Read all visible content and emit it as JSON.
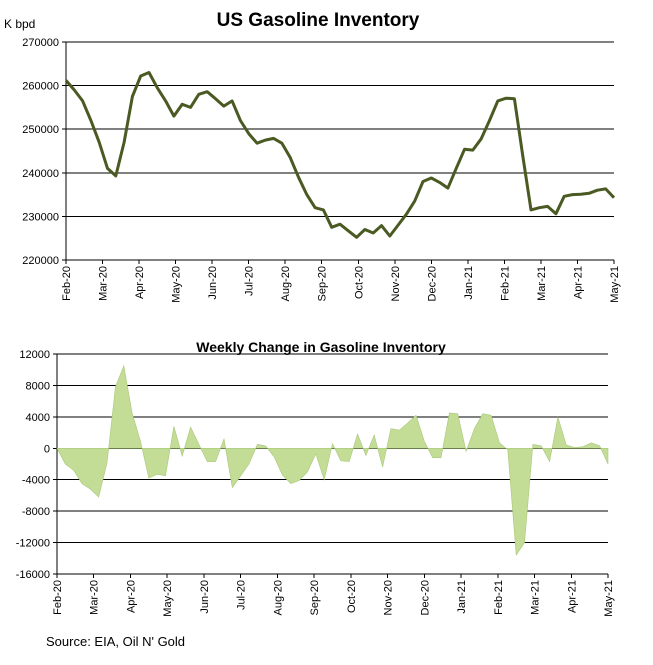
{
  "source_note": "Source: EIA, Oil N' Gold",
  "colors": {
    "line": "#4a5a22",
    "area": "#c3dc96",
    "area_edge": "#a9c97a",
    "grid": "#000000"
  },
  "chart_data": [
    {
      "type": "line",
      "title": "US Gasoline Inventory",
      "ylabel": "K bpd",
      "ylim": [
        220000,
        270000
      ],
      "yticks": [
        220000,
        230000,
        240000,
        250000,
        260000,
        270000
      ],
      "ytick_labels": [
        "220000",
        "230000",
        "240000",
        "250000",
        "260000",
        "270000"
      ],
      "xlabels": [
        "Feb-20",
        "Mar-20",
        "Apr-20",
        "May-20",
        "Jun-20",
        "Jul-20",
        "Aug-20",
        "Sep-20",
        "Oct-20",
        "Nov-20",
        "Dec-20",
        "Jan-21",
        "Feb-21",
        "Mar-21",
        "Apr-21",
        "May-21"
      ],
      "grid": true,
      "series": [
        {
          "values": [
            261200,
            259000,
            256500,
            252000,
            247000,
            241000,
            239300,
            247000,
            257500,
            262200,
            263000,
            259500,
            256500,
            253000,
            255700,
            255000,
            258000,
            258600,
            257000,
            255300,
            256500,
            252000,
            249000,
            246800,
            247500,
            247900,
            246800,
            243500,
            239000,
            235000,
            232000,
            231500,
            227500,
            228200,
            226700,
            225200,
            227000,
            226200,
            227900,
            225500,
            228000,
            230500,
            233500,
            238000,
            238800,
            237800,
            236500,
            241000,
            245400,
            245200,
            247800,
            252000,
            256500,
            257100,
            257000,
            244000,
            231500,
            232000,
            232300,
            230600,
            234600,
            235000,
            235100,
            235300,
            236000,
            236300,
            234300
          ]
        }
      ]
    },
    {
      "type": "area",
      "title": "Weekly Change in Gasoline Inventory",
      "ylim": [
        -16000,
        12000
      ],
      "yticks": [
        -16000,
        -12000,
        -8000,
        -4000,
        0,
        4000,
        8000,
        12000
      ],
      "ytick_labels": [
        "-16000",
        "-12000",
        "-8000",
        "-4000",
        "0",
        "4000",
        "8000",
        "12000"
      ],
      "xlabels": [
        "Feb-20",
        "Mar-20",
        "Apr-20",
        "May-20",
        "Jun-20",
        "Jul-20",
        "Aug-20",
        "Sep-20",
        "Oct-20",
        "Nov-20",
        "Dec-20",
        "Jan-21",
        "Feb-21",
        "Mar-21",
        "Apr-21",
        "May-21"
      ],
      "grid": true,
      "series": [
        {
          "values": [
            0,
            -2000,
            -2800,
            -4500,
            -5200,
            -6200,
            -1800,
            7800,
            10500,
            4500,
            900,
            -3800,
            -3300,
            -3500,
            2800,
            -1000,
            2700,
            500,
            -1700,
            -1700,
            1200,
            -5000,
            -3500,
            -2000,
            500,
            300,
            -1100,
            -3400,
            -4500,
            -4100,
            -3000,
            -700,
            -4000,
            600,
            -1600,
            -1700,
            1800,
            -900,
            1700,
            -2400,
            2500,
            2300,
            3200,
            4200,
            900,
            -1200,
            -1200,
            4500,
            4400,
            -400,
            2500,
            4400,
            4200,
            700,
            -200,
            -13600,
            -12000,
            500,
            300,
            -1700,
            4000,
            400,
            100,
            200,
            700,
            300,
            -2000
          ]
        }
      ]
    }
  ]
}
